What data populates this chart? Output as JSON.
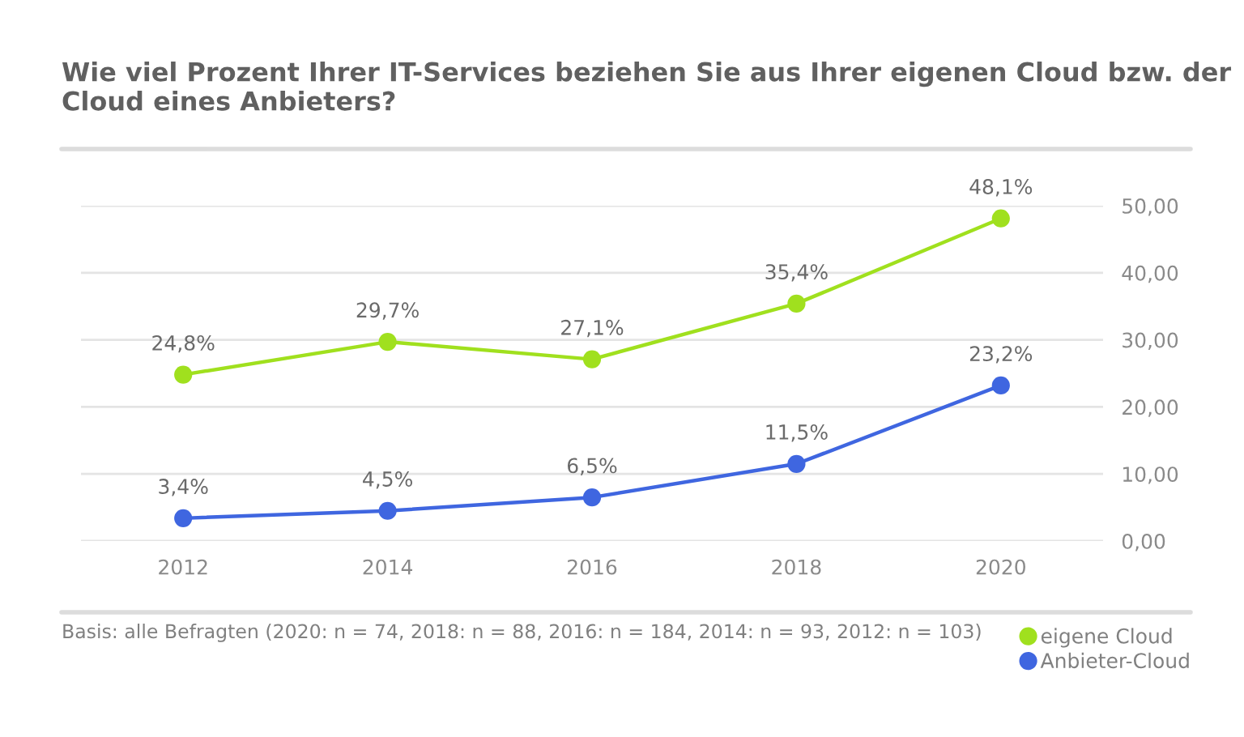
{
  "chart_data": {
    "type": "line",
    "title": "Wie viel Prozent Ihrer IT-Services beziehen Sie aus Ihrer eigenen Cloud bzw. der Cloud eines Anbieters?",
    "categories": [
      "2012",
      "2014",
      "2016",
      "2018",
      "2020"
    ],
    "series": [
      {
        "name": "eigene Cloud",
        "color": "#a0e01e",
        "values": [
          24.8,
          29.7,
          27.1,
          35.4,
          48.1
        ],
        "value_labels": [
          "24,8%",
          "29,7%",
          "27,1%",
          "35,4%",
          "48,1%"
        ]
      },
      {
        "name": "Anbieter-Cloud",
        "color": "#3f66e0",
        "values": [
          3.4,
          4.5,
          6.5,
          11.5,
          23.2
        ],
        "value_labels": [
          "3,4%",
          "4,5%",
          "6,5%",
          "11,5%",
          "23,2%"
        ]
      }
    ],
    "ylim": [
      0,
      50
    ],
    "yticks": [
      {
        "value": 0,
        "label": "0,00"
      },
      {
        "value": 10,
        "label": "10,00"
      },
      {
        "value": 20,
        "label": "20,00"
      },
      {
        "value": 30,
        "label": "30,00"
      },
      {
        "value": 40,
        "label": "40,00"
      },
      {
        "value": 50,
        "label": "50,00"
      }
    ],
    "grid": "y",
    "legend": "bottom right",
    "marker": "circle",
    "line_style": "solid",
    "annotations": [
      "Basis: alle Befragten (2020: n = 74, 2018: n = 88, 2016: n = 184, 2014: n = 93, 2012: n = 103)"
    ]
  }
}
